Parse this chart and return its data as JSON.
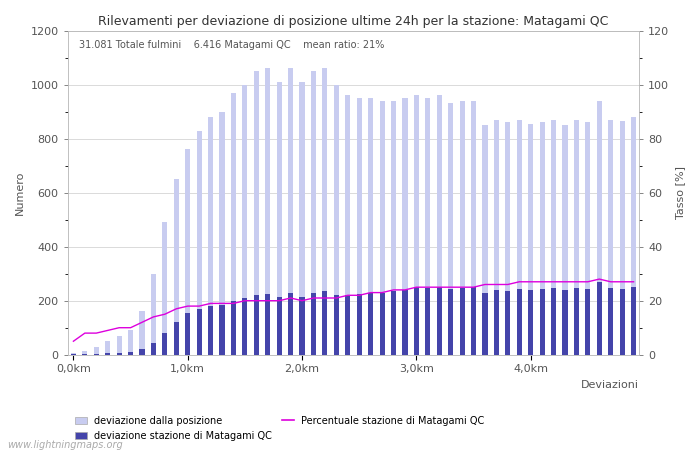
{
  "title": "Rilevamenti per deviazione di posizione ultime 24h per la stazione: Matagami QC",
  "subtitle": "31.081 Totale fulmini    6.416 Matagami QC    mean ratio: 21%",
  "xlabel": "Deviazioni",
  "ylabel_left": "Numero",
  "ylabel_right": "Tasso [%]",
  "watermark": "www.lightningmaps.org",
  "x_tick_labels": [
    "0,0km",
    "1,0km",
    "2,0km",
    "3,0km",
    "4,0km"
  ],
  "x_tick_positions": [
    0,
    10,
    20,
    30,
    40
  ],
  "ylim_left": [
    0,
    1200
  ],
  "ylim_right": [
    0,
    120
  ],
  "n_bars": 50,
  "legend_labels": [
    "deviazione dalla posizione",
    "deviazione stazione di Matagami QC",
    "Percentuale stazione di Matagami QC"
  ],
  "bar_color_light": "#c8ccf0",
  "bar_color_dark": "#4444aa",
  "line_color": "#dd00dd",
  "grid_color": "#cccccc",
  "background_color": "#ffffff",
  "total_bars": [
    5,
    15,
    30,
    50,
    70,
    90,
    160,
    300,
    490,
    650,
    760,
    830,
    880,
    900,
    970,
    1000,
    1050,
    1060,
    1010,
    1060,
    1010,
    1050,
    1060,
    1000,
    960,
    950,
    950,
    940,
    940,
    950,
    960,
    950,
    960,
    930,
    940,
    940,
    850,
    870,
    860,
    870,
    855,
    860,
    870,
    850,
    870,
    860,
    940,
    870,
    865,
    880
  ],
  "station_bars": [
    1,
    2,
    3,
    5,
    8,
    10,
    20,
    45,
    80,
    120,
    155,
    170,
    180,
    185,
    200,
    210,
    220,
    225,
    215,
    230,
    215,
    230,
    235,
    220,
    220,
    225,
    230,
    230,
    235,
    240,
    250,
    248,
    250,
    242,
    248,
    250,
    230,
    238,
    235,
    242,
    238,
    242,
    248,
    238,
    248,
    242,
    268,
    248,
    243,
    252
  ],
  "ratio_line": [
    5,
    8,
    8,
    9,
    10,
    10,
    12,
    14,
    15,
    17,
    18,
    18,
    19,
    19,
    19,
    20,
    20,
    20,
    20,
    21,
    20,
    21,
    21,
    21,
    22,
    22,
    23,
    23,
    24,
    24,
    25,
    25,
    25,
    25,
    25,
    25,
    26,
    26,
    26,
    27,
    27,
    27,
    27,
    27,
    27,
    27,
    28,
    27,
    27,
    27
  ]
}
